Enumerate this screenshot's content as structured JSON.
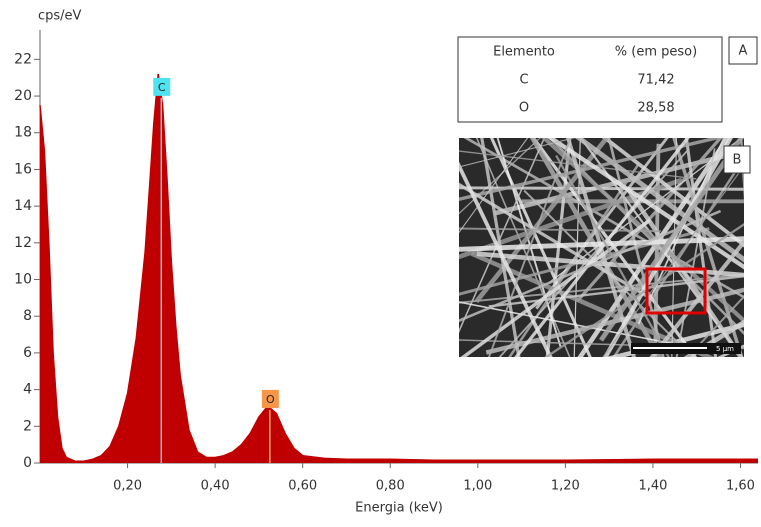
{
  "chart_data": {
    "type": "area",
    "y_label": "cps/eV",
    "x_label": "Energia (keV)",
    "x": [
      0.0,
      0.01,
      0.02,
      0.03,
      0.04,
      0.05,
      0.06,
      0.08,
      0.1,
      0.12,
      0.14,
      0.16,
      0.18,
      0.2,
      0.22,
      0.24,
      0.25,
      0.26,
      0.27,
      0.28,
      0.29,
      0.3,
      0.31,
      0.32,
      0.34,
      0.36,
      0.38,
      0.4,
      0.42,
      0.44,
      0.46,
      0.48,
      0.5,
      0.52,
      0.54,
      0.56,
      0.58,
      0.6,
      0.65,
      0.7,
      0.8,
      0.9,
      1.0,
      1.2,
      1.4,
      1.64
    ],
    "series": [
      {
        "color": "#c00000",
        "values": [
          19.5,
          17,
          12,
          6,
          2.5,
          0.8,
          0.3,
          0.1,
          0.1,
          0.2,
          0.4,
          0.9,
          2.0,
          3.8,
          6.8,
          11.5,
          15,
          18.5,
          21.2,
          19.5,
          15.5,
          11,
          7.5,
          4.8,
          1.8,
          0.6,
          0.3,
          0.3,
          0.4,
          0.6,
          1.0,
          1.6,
          2.5,
          3.1,
          2.7,
          1.6,
          0.8,
          0.4,
          0.25,
          0.2,
          0.2,
          0.15,
          0.15,
          0.15,
          0.2,
          0.2
        ]
      }
    ],
    "peaks": [
      {
        "label": "C",
        "x": 0.277,
        "color": "#4fe3ef"
      },
      {
        "label": "O",
        "x": 0.525,
        "color": "#f79646"
      }
    ],
    "xlim": [
      0,
      1.64
    ],
    "ylim": [
      0,
      23.6
    ],
    "xticks": [
      {
        "value": 0.2,
        "label": "0,20"
      },
      {
        "value": 0.4,
        "label": "0,40"
      },
      {
        "value": 0.6,
        "label": "0,60"
      },
      {
        "value": 0.8,
        "label": "0,80"
      },
      {
        "value": 1.0,
        "label": "1,00"
      },
      {
        "value": 1.2,
        "label": "1,20"
      },
      {
        "value": 1.4,
        "label": "1,40"
      },
      {
        "value": 1.6,
        "label": "1,60"
      }
    ],
    "yticks": [
      0,
      2,
      4,
      6,
      8,
      10,
      12,
      14,
      16,
      18,
      20,
      22
    ]
  },
  "inset_table": {
    "label": "A",
    "header": [
      "Elemento",
      "% (em peso)"
    ],
    "rows": [
      [
        "C",
        "71,42"
      ],
      [
        "O",
        "28,58"
      ]
    ]
  },
  "inset_image": {
    "label": "B",
    "scale_bar": "5 µm"
  }
}
